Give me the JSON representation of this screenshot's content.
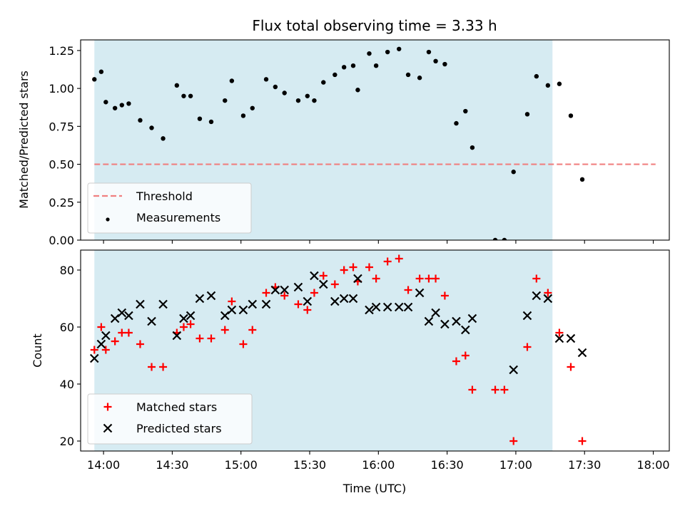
{
  "chart_data": [
    {
      "type": "scatter",
      "title": "Flux total observing time = 3.33 h",
      "xlabel": "",
      "ylabel": "Matched/Predicted stars",
      "ylim": [
        0,
        1.32
      ],
      "yticks": [
        "0.00",
        "0.25",
        "0.50",
        "0.75",
        "1.00",
        "1.25"
      ],
      "xticks": [
        "14:00",
        "14:30",
        "15:00",
        "15:30",
        "16:00",
        "16:30",
        "17:00",
        "17:30",
        "18:00"
      ],
      "xlim": [
        "13:50",
        "18:07"
      ],
      "shaded_interval": [
        "13:56",
        "17:16"
      ],
      "shade_color": "#add8e6",
      "legend_position": "lower-left",
      "threshold": {
        "name": "Threshold",
        "value": 0.5,
        "x_from": "13:56",
        "x_to": "18:01",
        "color": "#f08080"
      },
      "series": [
        {
          "name": "Measurements",
          "marker": "dot",
          "color": "#000000",
          "points": [
            [
              "13:56",
              1.06
            ],
            [
              "13:59",
              1.11
            ],
            [
              "14:01",
              0.91
            ],
            [
              "14:05",
              0.87
            ],
            [
              "14:08",
              0.89
            ],
            [
              "14:11",
              0.9
            ],
            [
              "14:16",
              0.79
            ],
            [
              "14:21",
              0.74
            ],
            [
              "14:26",
              0.67
            ],
            [
              "14:32",
              1.02
            ],
            [
              "14:35",
              0.95
            ],
            [
              "14:38",
              0.95
            ],
            [
              "14:42",
              0.8
            ],
            [
              "14:47",
              0.78
            ],
            [
              "14:53",
              0.92
            ],
            [
              "14:56",
              1.05
            ],
            [
              "15:01",
              0.82
            ],
            [
              "15:05",
              0.87
            ],
            [
              "15:11",
              1.06
            ],
            [
              "15:15",
              1.01
            ],
            [
              "15:19",
              0.97
            ],
            [
              "15:25",
              0.92
            ],
            [
              "15:29",
              0.95
            ],
            [
              "15:32",
              0.92
            ],
            [
              "15:36",
              1.04
            ],
            [
              "15:41",
              1.09
            ],
            [
              "15:45",
              1.14
            ],
            [
              "15:49",
              1.15
            ],
            [
              "15:51",
              0.99
            ],
            [
              "15:56",
              1.23
            ],
            [
              "15:59",
              1.15
            ],
            [
              "16:04",
              1.24
            ],
            [
              "16:09",
              1.26
            ],
            [
              "16:13",
              1.09
            ],
            [
              "16:18",
              1.07
            ],
            [
              "16:22",
              1.24
            ],
            [
              "16:25",
              1.18
            ],
            [
              "16:29",
              1.16
            ],
            [
              "16:34",
              0.77
            ],
            [
              "16:38",
              0.85
            ],
            [
              "16:41",
              0.61
            ],
            [
              "16:51",
              0.0
            ],
            [
              "16:55",
              0.0
            ],
            [
              "16:59",
              0.45
            ],
            [
              "17:05",
              0.83
            ],
            [
              "17:09",
              1.08
            ],
            [
              "17:14",
              1.02
            ],
            [
              "17:19",
              1.03
            ],
            [
              "17:24",
              0.82
            ],
            [
              "17:29",
              0.4
            ]
          ]
        }
      ]
    },
    {
      "type": "scatter",
      "title": "",
      "xlabel": "Time (UTC)",
      "ylabel": "Count",
      "ylim": [
        16.5,
        87
      ],
      "yticks": [
        "20",
        "40",
        "60",
        "80"
      ],
      "xticks": [
        "14:00",
        "14:30",
        "15:00",
        "15:30",
        "16:00",
        "16:30",
        "17:00",
        "17:30",
        "18:00"
      ],
      "xlim": [
        "13:50",
        "18:07"
      ],
      "shaded_interval": [
        "13:56",
        "17:16"
      ],
      "shade_color": "#add8e6",
      "legend_position": "lower-left",
      "series": [
        {
          "name": "Matched stars",
          "marker": "plus",
          "color": "#ff0000",
          "points": [
            [
              "13:56",
              52
            ],
            [
              "13:59",
              60
            ],
            [
              "14:01",
              52
            ],
            [
              "14:05",
              55
            ],
            [
              "14:08",
              58
            ],
            [
              "14:11",
              58
            ],
            [
              "14:16",
              54
            ],
            [
              "14:21",
              46
            ],
            [
              "14:26",
              46
            ],
            [
              "14:32",
              58
            ],
            [
              "14:35",
              60
            ],
            [
              "14:38",
              61
            ],
            [
              "14:42",
              56
            ],
            [
              "14:47",
              56
            ],
            [
              "14:53",
              59
            ],
            [
              "14:56",
              69
            ],
            [
              "15:01",
              54
            ],
            [
              "15:05",
              59
            ],
            [
              "15:11",
              72
            ],
            [
              "15:15",
              74
            ],
            [
              "15:19",
              71
            ],
            [
              "15:25",
              68
            ],
            [
              "15:29",
              66
            ],
            [
              "15:32",
              72
            ],
            [
              "15:36",
              78
            ],
            [
              "15:41",
              75
            ],
            [
              "15:45",
              80
            ],
            [
              "15:49",
              81
            ],
            [
              "15:51",
              76
            ],
            [
              "15:56",
              81
            ],
            [
              "15:59",
              77
            ],
            [
              "16:04",
              83
            ],
            [
              "16:09",
              84
            ],
            [
              "16:13",
              73
            ],
            [
              "16:18",
              77
            ],
            [
              "16:22",
              77
            ],
            [
              "16:25",
              77
            ],
            [
              "16:29",
              71
            ],
            [
              "16:34",
              48
            ],
            [
              "16:38",
              50
            ],
            [
              "16:41",
              38
            ],
            [
              "16:51",
              38
            ],
            [
              "16:55",
              38
            ],
            [
              "16:59",
              20
            ],
            [
              "17:05",
              53
            ],
            [
              "17:09",
              77
            ],
            [
              "17:14",
              72
            ],
            [
              "17:19",
              58
            ],
            [
              "17:24",
              46
            ],
            [
              "17:29",
              20
            ]
          ]
        },
        {
          "name": "Predicted stars",
          "marker": "x",
          "color": "#000000",
          "points": [
            [
              "13:56",
              49
            ],
            [
              "13:59",
              54
            ],
            [
              "14:01",
              57
            ],
            [
              "14:05",
              63
            ],
            [
              "14:08",
              65
            ],
            [
              "14:11",
              64
            ],
            [
              "14:16",
              68
            ],
            [
              "14:21",
              62
            ],
            [
              "14:26",
              68
            ],
            [
              "14:32",
              57
            ],
            [
              "14:35",
              63
            ],
            [
              "14:38",
              64
            ],
            [
              "14:42",
              70
            ],
            [
              "14:47",
              71
            ],
            [
              "14:53",
              64
            ],
            [
              "14:56",
              66
            ],
            [
              "15:01",
              66
            ],
            [
              "15:05",
              68
            ],
            [
              "15:11",
              68
            ],
            [
              "15:15",
              73
            ],
            [
              "15:19",
              73
            ],
            [
              "15:25",
              74
            ],
            [
              "15:29",
              69
            ],
            [
              "15:32",
              78
            ],
            [
              "15:36",
              75
            ],
            [
              "15:41",
              69
            ],
            [
              "15:45",
              70
            ],
            [
              "15:49",
              70
            ],
            [
              "15:51",
              77
            ],
            [
              "15:56",
              66
            ],
            [
              "15:59",
              67
            ],
            [
              "16:04",
              67
            ],
            [
              "16:09",
              67
            ],
            [
              "16:13",
              67
            ],
            [
              "16:18",
              72
            ],
            [
              "16:22",
              62
            ],
            [
              "16:25",
              65
            ],
            [
              "16:29",
              61
            ],
            [
              "16:34",
              62
            ],
            [
              "16:38",
              59
            ],
            [
              "16:41",
              63
            ],
            [
              "16:59",
              45
            ],
            [
              "17:05",
              64
            ],
            [
              "17:09",
              71
            ],
            [
              "17:14",
              70
            ],
            [
              "17:19",
              56
            ],
            [
              "17:24",
              56
            ],
            [
              "17:29",
              51
            ]
          ]
        }
      ]
    }
  ]
}
